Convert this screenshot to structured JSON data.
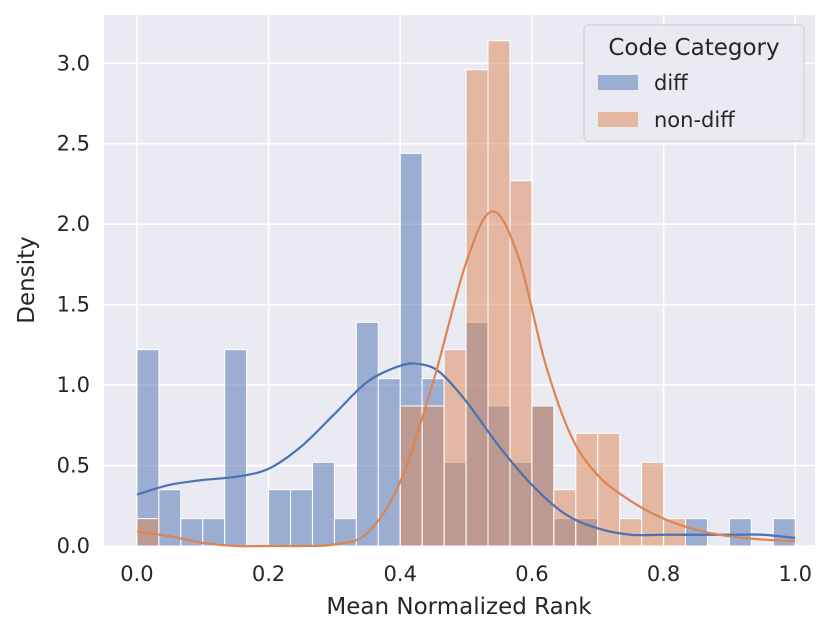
{
  "chart_data": {
    "type": "histogram",
    "xlabel": "Mean Normalized Rank",
    "ylabel": "Density",
    "xlim": [
      -0.05,
      1.03
    ],
    "ylim": [
      0,
      3.3
    ],
    "xticks": [
      "0.0",
      "0.2",
      "0.4",
      "0.6",
      "0.8",
      "1.0"
    ],
    "yticks": [
      "0.0",
      "0.5",
      "1.0",
      "1.5",
      "2.0",
      "2.5",
      "3.0"
    ],
    "grid": true,
    "bin_width": 0.0333,
    "bin_starts": [
      0.0,
      0.0333,
      0.0667,
      0.1,
      0.1333,
      0.1667,
      0.2,
      0.2333,
      0.2667,
      0.3,
      0.3333,
      0.3667,
      0.4,
      0.4333,
      0.4667,
      0.5,
      0.5333,
      0.5667,
      0.6,
      0.6333,
      0.6667,
      0.7,
      0.7333,
      0.7667,
      0.8,
      0.8333,
      0.8667,
      0.9,
      0.9333,
      0.9667
    ],
    "legend": {
      "title": "Code Category",
      "position": "top-right"
    },
    "series": [
      {
        "name": "diff",
        "color": "#4c72b0",
        "values": [
          1.22,
          0.35,
          0.17,
          0.17,
          1.22,
          0,
          0.35,
          0.35,
          0.52,
          0.17,
          1.39,
          1.04,
          2.44,
          1.04,
          0.52,
          1.39,
          0.87,
          0.52,
          0.87,
          0.17,
          0.17,
          0,
          0,
          0,
          0,
          0.17,
          0,
          0.17,
          0,
          0.17
        ],
        "kde_x": [
          0.0,
          0.05,
          0.1,
          0.15,
          0.2,
          0.25,
          0.3,
          0.35,
          0.4,
          0.43,
          0.46,
          0.5,
          0.55,
          0.6,
          0.65,
          0.7,
          0.75,
          0.8,
          0.85,
          0.9,
          0.95,
          1.0
        ],
        "kde_y": [
          0.32,
          0.38,
          0.41,
          0.43,
          0.48,
          0.62,
          0.82,
          1.02,
          1.12,
          1.13,
          1.08,
          0.9,
          0.62,
          0.38,
          0.2,
          0.11,
          0.07,
          0.07,
          0.07,
          0.07,
          0.07,
          0.05
        ]
      },
      {
        "name": "non-diff",
        "color": "#dd8452",
        "values": [
          0.17,
          0,
          0,
          0,
          0,
          0,
          0,
          0,
          0,
          0,
          0,
          0,
          0.87,
          0.87,
          1.22,
          2.96,
          3.14,
          2.27,
          0.87,
          0.35,
          0.7,
          0.7,
          0.17,
          0.52,
          0.17,
          0,
          0,
          0,
          0,
          0
        ],
        "kde_x": [
          0.0,
          0.05,
          0.1,
          0.15,
          0.2,
          0.25,
          0.3,
          0.35,
          0.4,
          0.45,
          0.5,
          0.54,
          0.58,
          0.62,
          0.66,
          0.7,
          0.75,
          0.8,
          0.85,
          0.9,
          0.95,
          1.0
        ],
        "kde_y": [
          0.09,
          0.06,
          0.02,
          0.0,
          0.0,
          0.0,
          0.01,
          0.08,
          0.4,
          1.02,
          1.76,
          2.08,
          1.79,
          1.14,
          0.68,
          0.44,
          0.28,
          0.17,
          0.1,
          0.06,
          0.04,
          0.03
        ]
      }
    ]
  }
}
